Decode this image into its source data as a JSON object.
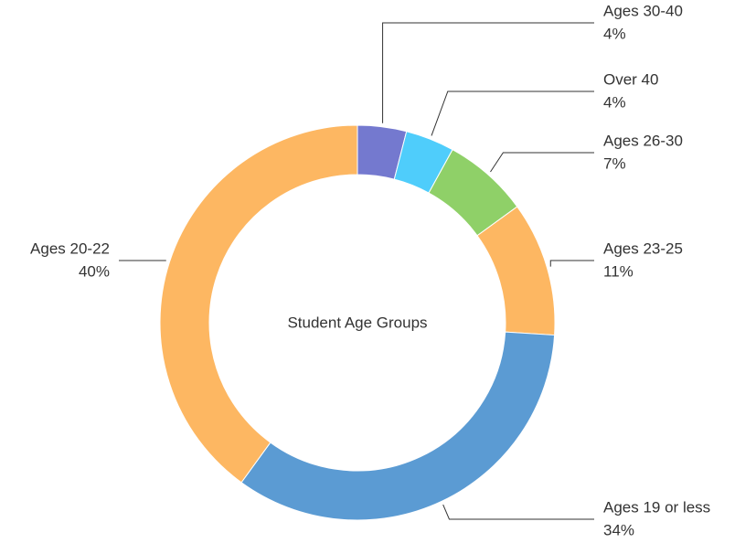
{
  "chart_data": {
    "type": "donut",
    "title": "Student Age Groups",
    "categories": [
      "Ages 30-40",
      "Over 40",
      "Ages 26-30",
      "Ages 23-25",
      "Ages 19 or less",
      "Ages 20-22"
    ],
    "values": [
      4,
      4,
      7,
      11,
      34,
      40
    ],
    "value_labels": [
      "4%",
      "4%",
      "7%",
      "11%",
      "34%",
      "40%"
    ],
    "colors": [
      "#7479cf",
      "#4fcdfb",
      "#8fd068",
      "#fdb762",
      "#5b9bd3",
      "#fdb762"
    ]
  }
}
